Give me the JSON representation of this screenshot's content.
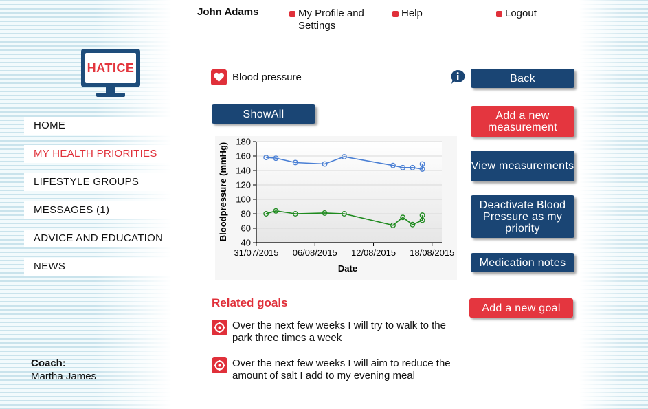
{
  "header": {
    "user_name": "John Adams",
    "links": {
      "profile": "My Profile and Settings",
      "help": "Help",
      "logout": "Logout"
    }
  },
  "logo": {
    "text": "HATICE"
  },
  "sidebar": {
    "items": [
      {
        "label": "HOME"
      },
      {
        "label": "MY HEALTH PRIORITIES"
      },
      {
        "label": "LIFESTYLE GROUPS"
      },
      {
        "label": "MESSAGES (1)"
      },
      {
        "label": "ADVICE AND EDUCATION"
      },
      {
        "label": "NEWS"
      }
    ],
    "active_index": 1,
    "coach_label": "Coach:",
    "coach_name": "Martha James"
  },
  "main": {
    "title": "Blood pressure",
    "show_all_label": "ShowAll",
    "related_goals_title": "Related goals",
    "goals": [
      {
        "text": "Over the next few weeks I will try to walk to the park three times a week"
      },
      {
        "text": "Over the next few weeks I will aim to reduce the amount of salt I add to my evening meal"
      }
    ]
  },
  "actions": {
    "back": "Back",
    "add_measurement": "Add a new measurement",
    "view_measurements": "View measurements",
    "deactivate": "Deactivate Blood Pressure as my priority",
    "medication_notes": "Medication notes",
    "add_goal": "Add a new goal"
  },
  "colors": {
    "primary_blue": "#1a4574",
    "accent_red": "#e4363f",
    "systolic_line": "#4a7fd4",
    "diastolic_line": "#1e8a1e"
  },
  "chart_data": {
    "type": "line",
    "xlabel": "Date",
    "ylabel": "Bloodpressure (mmHg)",
    "ylim": [
      40,
      180
    ],
    "yticks": [
      40,
      60,
      80,
      100,
      120,
      140,
      160,
      180
    ],
    "xticks": [
      "31/07/2015",
      "06/08/2015",
      "12/08/2015",
      "18/08/2015"
    ],
    "xlim": [
      "2015-07-31",
      "2015-08-19"
    ],
    "series": [
      {
        "color": "#4a7fd4",
        "points": [
          [
            "2015-08-01",
            158
          ],
          [
            "2015-08-02",
            157
          ],
          [
            "2015-08-04",
            151
          ],
          [
            "2015-08-07",
            149
          ],
          [
            "2015-08-09",
            159
          ],
          [
            "2015-08-14",
            147
          ],
          [
            "2015-08-15",
            144
          ],
          [
            "2015-08-16",
            144
          ],
          [
            "2015-08-17",
            142
          ],
          [
            "2015-08-17",
            149
          ]
        ]
      },
      {
        "color": "#1e8a1e",
        "points": [
          [
            "2015-08-01",
            80
          ],
          [
            "2015-08-02",
            84
          ],
          [
            "2015-08-04",
            80
          ],
          [
            "2015-08-07",
            81
          ],
          [
            "2015-08-09",
            80
          ],
          [
            "2015-08-14",
            64
          ],
          [
            "2015-08-15",
            75
          ],
          [
            "2015-08-16",
            65
          ],
          [
            "2015-08-17",
            71
          ],
          [
            "2015-08-17",
            78
          ]
        ]
      }
    ]
  }
}
